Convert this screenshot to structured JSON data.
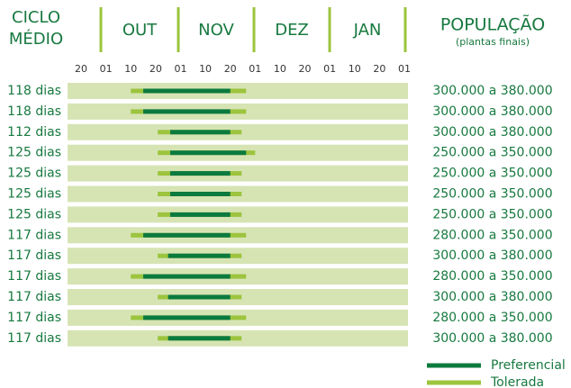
{
  "chart_data": {
    "type": "gantt",
    "row_header": [
      "CICLO",
      "MÉDIO"
    ],
    "months": [
      "OUT",
      "NOV",
      "DEZ",
      "JAN"
    ],
    "population_header": "POPULAÇÃO",
    "population_subheader": "(plantas finais)",
    "xlim": [
      -11,
      123
    ],
    "xticks": [
      {
        "value": -11,
        "label": "20"
      },
      {
        "value": 0,
        "label": "01"
      },
      {
        "value": 9,
        "label": "10"
      },
      {
        "value": 19,
        "label": "20"
      },
      {
        "value": 31,
        "label": "01"
      },
      {
        "value": 40,
        "label": "10"
      },
      {
        "value": 50,
        "label": "20"
      },
      {
        "value": 61,
        "label": "01"
      },
      {
        "value": 70,
        "label": "10"
      },
      {
        "value": 80,
        "label": "20"
      },
      {
        "value": 92,
        "label": "01"
      },
      {
        "value": 101,
        "label": "10"
      },
      {
        "value": 111,
        "label": "20"
      },
      {
        "value": 123,
        "label": "01"
      }
    ],
    "series": [
      {
        "name": "Preferencial",
        "color": "#0b7a3e"
      },
      {
        "name": "Tolerada",
        "color": "#9cc43e"
      }
    ],
    "rows": [
      {
        "label": "118 dias",
        "population": "300.000 a 380.000",
        "tolerated": [
          9,
          57
        ],
        "preferred": [
          14,
          50
        ]
      },
      {
        "label": "118 dias",
        "population": "300.000 a 380.000",
        "tolerated": [
          9,
          57
        ],
        "preferred": [
          14,
          50
        ]
      },
      {
        "label": "112 dias",
        "population": "300.000 a 380.000",
        "tolerated": [
          20,
          55
        ],
        "preferred": [
          26,
          50
        ]
      },
      {
        "label": "125 dias",
        "population": "250.000 a 350.000",
        "tolerated": [
          20,
          61
        ],
        "preferred": [
          26,
          57
        ]
      },
      {
        "label": "125 dias",
        "population": "250.000 a 350.000",
        "tolerated": [
          20,
          55
        ],
        "preferred": [
          26,
          50
        ]
      },
      {
        "label": "125 dias",
        "population": "250.000 a 350.000",
        "tolerated": [
          20,
          55
        ],
        "preferred": [
          26,
          50
        ]
      },
      {
        "label": "125 dias",
        "population": "250.000 a 350.000",
        "tolerated": [
          20,
          55
        ],
        "preferred": [
          26,
          50
        ]
      },
      {
        "label": "117 dias",
        "population": "280.000 a 350.000",
        "tolerated": [
          9,
          57
        ],
        "preferred": [
          14,
          50
        ]
      },
      {
        "label": "117 dias",
        "population": "300.000 a 380.000",
        "tolerated": [
          20,
          55
        ],
        "preferred": [
          25,
          50
        ]
      },
      {
        "label": "117 dias",
        "population": "280.000 a 350.000",
        "tolerated": [
          9,
          57
        ],
        "preferred": [
          14,
          50
        ]
      },
      {
        "label": "117 dias",
        "population": "300.000 a 380.000",
        "tolerated": [
          20,
          55
        ],
        "preferred": [
          25,
          50
        ]
      },
      {
        "label": "117 dias",
        "population": "280.000 a 350.000",
        "tolerated": [
          9,
          57
        ],
        "preferred": [
          14,
          50
        ]
      },
      {
        "label": "117 dias",
        "population": "300.000 a 380.000",
        "tolerated": [
          20,
          55
        ],
        "preferred": [
          25,
          50
        ]
      }
    ]
  }
}
